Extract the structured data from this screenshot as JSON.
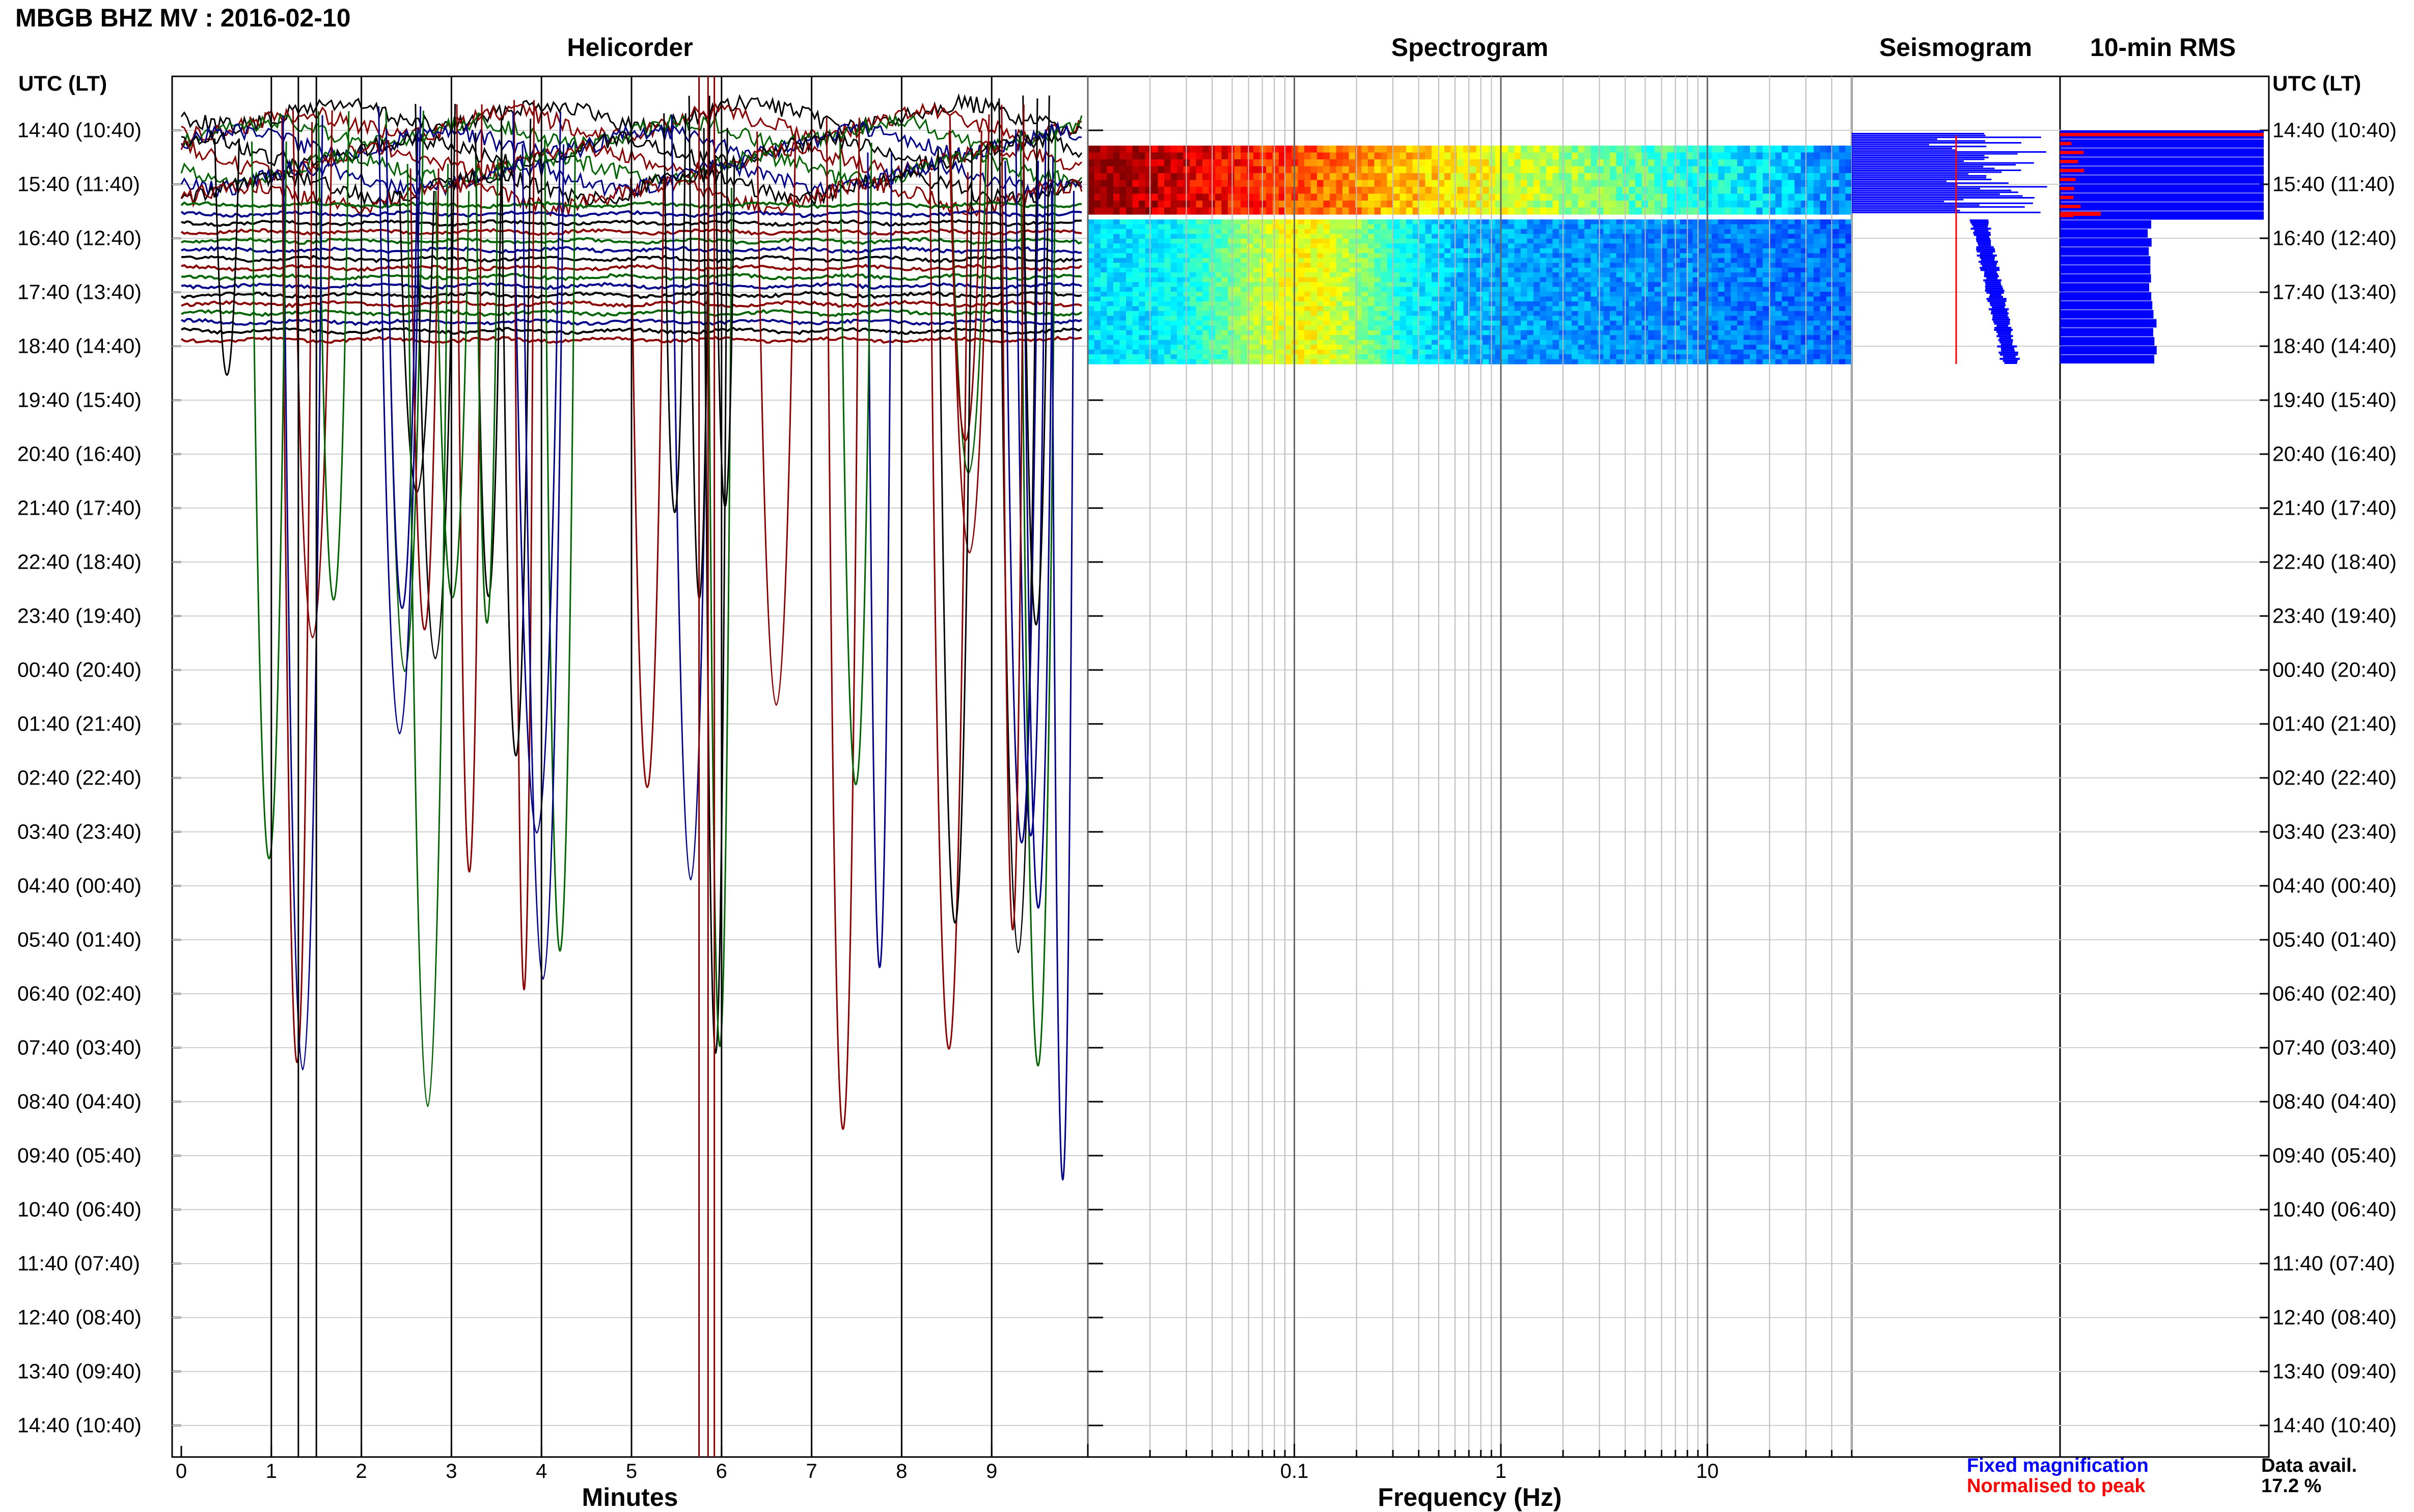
{
  "header": {
    "title": "MBGB BHZ MV : 2016-02-10",
    "time_axis_label": "UTC (LT)"
  },
  "panels": {
    "helicorder": "Helicorder",
    "spectrogram": "Spectrogram",
    "seismogram": "Seismogram",
    "rms": "10-min RMS"
  },
  "legend": {
    "fixed": "Fixed magnification",
    "normalised": "Normalised to peak",
    "data_avail_label": "Data avail.",
    "data_avail_value": "17.2 %"
  },
  "colors": {
    "fixed": "#0000ff",
    "normalised": "#ff0000",
    "trace_cycle": [
      "#000000",
      "#8b0000",
      "#006400",
      "#00008b"
    ]
  },
  "chart_data": [
    {
      "type": "line",
      "title": "Helicorder",
      "xlabel": "Minutes",
      "xlim": [
        0,
        10
      ],
      "x_ticks": [
        "0",
        "1",
        "2",
        "3",
        "4",
        "5",
        "6",
        "7",
        "8",
        "9"
      ],
      "y_ticks": [
        "14:40 (10:40)",
        "15:40 (11:40)",
        "16:40 (12:40)",
        "17:40 (13:40)",
        "18:40 (14:40)",
        "19:40 (15:40)",
        "20:40 (16:40)",
        "21:40 (17:40)",
        "22:40 (18:40)",
        "23:40 (19:40)",
        "00:40 (20:40)",
        "01:40 (21:40)",
        "02:40 (22:40)",
        "03:40 (23:40)",
        "04:40 (00:40)",
        "05:40 (01:40)",
        "06:40 (02:40)",
        "07:40 (03:40)",
        "08:40 (04:40)",
        "09:40 (05:40)",
        "10:40 (06:40)",
        "11:40 (07:40)",
        "12:40 (08:40)",
        "13:40 (09:40)",
        "14:40 (10:40)"
      ],
      "data_extent_hours": 4.33
    },
    {
      "type": "heatmap",
      "title": "Spectrogram",
      "xlabel": "Frequency (Hz)",
      "xscale": "log",
      "xlim": [
        0.01,
        50
      ],
      "x_ticks": [
        "0.1",
        "1",
        "10"
      ],
      "grid": true,
      "data_extent_hours": 4.33
    },
    {
      "type": "bar",
      "title": "Seismogram",
      "series": [
        {
          "name": "Fixed magnification",
          "color": "#0000ff"
        },
        {
          "name": "Normalised to peak",
          "color": "#ff0000"
        }
      ]
    },
    {
      "type": "bar",
      "title": "10-min RMS",
      "series": [
        {
          "name": "Fixed magnification",
          "color": "#0000ff"
        },
        {
          "name": "Normalised to peak",
          "color": "#ff0000"
        }
      ]
    }
  ]
}
